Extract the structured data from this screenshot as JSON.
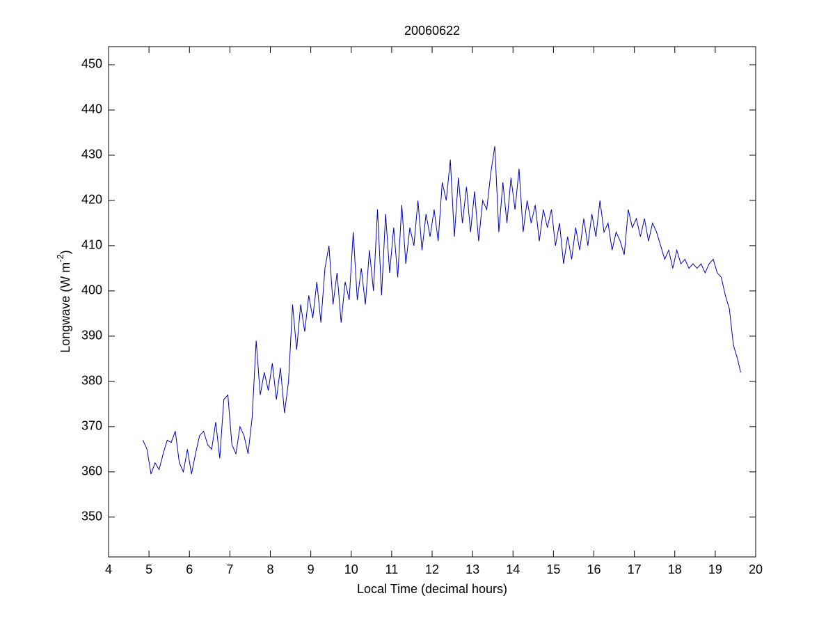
{
  "chart_data": {
    "type": "line",
    "title": "20060622",
    "xlabel": "Local Time (decimal hours)",
    "ylabel": [
      "Longwave (W m",
      "-2",
      ")"
    ],
    "xlim": [
      4,
      20
    ],
    "xticks": [
      4,
      5,
      6,
      7,
      8,
      9,
      10,
      11,
      12,
      13,
      14,
      15,
      16,
      17,
      18,
      19,
      20
    ],
    "ylim": [
      341.2,
      454
    ],
    "yticks": [
      350,
      360,
      370,
      380,
      390,
      400,
      410,
      420,
      430,
      440,
      450
    ],
    "series": [
      {
        "color": "#0000b0",
        "x": [
          4.85,
          4.95,
          5.05,
          5.15,
          5.25,
          5.35,
          5.45,
          5.55,
          5.65,
          5.75,
          5.85,
          5.95,
          6.05,
          6.15,
          6.25,
          6.35,
          6.45,
          6.55,
          6.65,
          6.75,
          6.85,
          6.95,
          7.05,
          7.15,
          7.25,
          7.35,
          7.45,
          7.55,
          7.65,
          7.75,
          7.85,
          7.95,
          8.05,
          8.15,
          8.25,
          8.35,
          8.45,
          8.55,
          8.65,
          8.75,
          8.85,
          8.95,
          9.05,
          9.15,
          9.25,
          9.35,
          9.45,
          9.55,
          9.65,
          9.75,
          9.85,
          9.95,
          10.05,
          10.15,
          10.25,
          10.35,
          10.45,
          10.55,
          10.65,
          10.75,
          10.85,
          10.95,
          11.05,
          11.15,
          11.25,
          11.35,
          11.45,
          11.55,
          11.65,
          11.75,
          11.85,
          11.95,
          12.05,
          12.15,
          12.25,
          12.35,
          12.45,
          12.55,
          12.65,
          12.75,
          12.85,
          12.95,
          13.05,
          13.15,
          13.25,
          13.35,
          13.45,
          13.55,
          13.65,
          13.75,
          13.85,
          13.95,
          14.05,
          14.15,
          14.25,
          14.35,
          14.45,
          14.55,
          14.65,
          14.75,
          14.85,
          14.95,
          15.05,
          15.15,
          15.25,
          15.35,
          15.45,
          15.55,
          15.65,
          15.75,
          15.85,
          15.95,
          16.05,
          16.15,
          16.25,
          16.35,
          16.45,
          16.55,
          16.65,
          16.75,
          16.85,
          16.95,
          17.05,
          17.15,
          17.25,
          17.35,
          17.45,
          17.55,
          17.65,
          17.75,
          17.85,
          17.95,
          18.05,
          18.15,
          18.25,
          18.35,
          18.45,
          18.55,
          18.65,
          18.75,
          18.85,
          18.95,
          19.05,
          19.15,
          19.25,
          19.35,
          19.45,
          19.55,
          19.63
        ],
        "values": [
          367,
          365,
          359.5,
          362,
          360.5,
          364,
          367,
          366.5,
          369,
          362,
          360,
          365,
          359.5,
          364,
          368,
          369,
          366,
          365,
          371,
          363,
          376,
          377,
          366,
          364,
          370,
          368,
          364,
          372,
          389,
          377,
          382,
          378,
          384,
          376,
          383,
          373,
          380,
          397,
          387,
          397,
          391,
          399,
          394,
          402,
          393,
          405,
          410,
          397,
          404,
          393,
          402,
          398,
          413,
          398,
          405,
          397,
          409,
          400,
          418,
          399,
          417,
          404,
          414,
          403,
          419,
          406,
          414,
          410,
          420,
          409,
          417,
          412,
          418,
          411,
          424,
          420,
          429,
          412,
          425,
          415,
          423,
          413,
          422,
          411,
          420,
          418,
          426,
          432,
          413,
          424,
          415,
          425,
          418,
          427,
          413,
          420,
          415,
          419,
          411,
          418,
          414,
          418,
          410,
          415,
          406,
          412,
          407,
          414,
          409,
          416,
          410,
          417,
          412,
          420,
          413,
          415,
          409,
          413,
          411,
          408,
          418,
          414,
          416,
          412,
          416,
          411,
          415,
          413,
          410,
          407,
          409,
          405,
          409,
          406,
          407,
          405,
          406,
          405,
          406,
          404,
          406,
          407,
          404,
          403,
          399,
          396,
          388,
          385,
          382
        ]
      }
    ]
  }
}
